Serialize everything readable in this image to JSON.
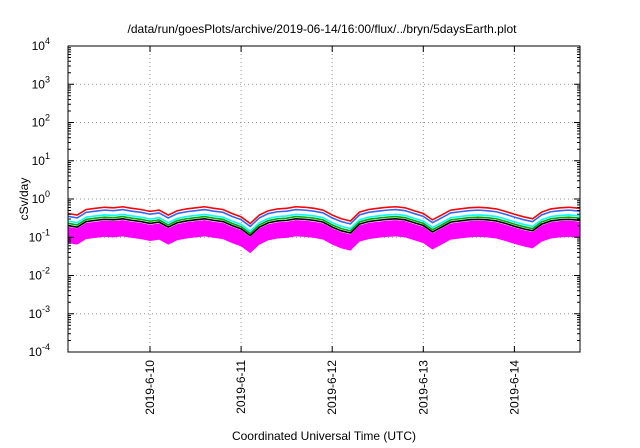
{
  "chart_data": {
    "type": "line",
    "title": "/data/run/goesPlots/archive/2019-06-14/16:00/flux/../bryn/5daysEarth.plot",
    "xlabel": "Coordinated Universal Time (UTC)",
    "ylabel": "cSv/day",
    "yscale": "log",
    "ylim": [
      0.0001,
      10000
    ],
    "y_ticks": [
      {
        "base": "10",
        "exp": "-4",
        "value": 0.0001
      },
      {
        "base": "10",
        "exp": "-3",
        "value": 0.001
      },
      {
        "base": "10",
        "exp": "-2",
        "value": 0.01
      },
      {
        "base": "10",
        "exp": "-1",
        "value": 0.1
      },
      {
        "base": "10",
        "exp": "0",
        "value": 1
      },
      {
        "base": "10",
        "exp": "1",
        "value": 10
      },
      {
        "base": "10",
        "exp": "2",
        "value": 100
      },
      {
        "base": "10",
        "exp": "3",
        "value": 1000
      },
      {
        "base": "10",
        "exp": "4",
        "value": 10000
      }
    ],
    "xlim": [
      9.1,
      14.72
    ],
    "x_ticks": [
      {
        "label": "2019-6-10",
        "value": 10
      },
      {
        "label": "2019-6-11",
        "value": 11
      },
      {
        "label": "2019-6-12",
        "value": 12
      },
      {
        "label": "2019-6-13",
        "value": 13
      },
      {
        "label": "2019-6-14",
        "value": 14
      }
    ],
    "grid": true,
    "legend": "none",
    "fill_band": {
      "color": "#ff00ff",
      "lower_factor": 0.32,
      "upper_factor": 0.85
    },
    "series": [
      {
        "color": "#ff00ff",
        "factor": 0.6
      },
      {
        "color": "#ff0000",
        "factor": 1.9
      },
      {
        "color": "#000000",
        "factor": 0.92
      },
      {
        "color": "#00aa00",
        "factor": 1.05
      },
      {
        "color": "#00ffff",
        "factor": 1.2
      },
      {
        "color": "#3366ff",
        "factor": 1.6
      }
    ],
    "baseline_x": [
      9.1,
      9.2,
      9.3,
      9.4,
      9.5,
      9.6,
      9.7,
      9.8,
      9.9,
      10.0,
      10.1,
      10.2,
      10.3,
      10.4,
      10.5,
      10.6,
      10.7,
      10.8,
      10.9,
      11.0,
      11.1,
      11.2,
      11.3,
      11.4,
      11.5,
      11.6,
      11.7,
      11.8,
      11.9,
      12.0,
      12.1,
      12.2,
      12.3,
      12.4,
      12.5,
      12.6,
      12.7,
      12.8,
      12.9,
      13.0,
      13.1,
      13.2,
      13.3,
      13.4,
      13.5,
      13.6,
      13.7,
      13.8,
      13.9,
      14.0,
      14.1,
      14.2,
      14.3,
      14.4,
      14.5,
      14.6,
      14.72
    ],
    "baseline_y": [
      0.22,
      0.2,
      0.28,
      0.3,
      0.32,
      0.31,
      0.33,
      0.3,
      0.28,
      0.25,
      0.27,
      0.2,
      0.26,
      0.29,
      0.31,
      0.33,
      0.3,
      0.28,
      0.22,
      0.18,
      0.12,
      0.2,
      0.26,
      0.29,
      0.3,
      0.33,
      0.32,
      0.3,
      0.27,
      0.2,
      0.16,
      0.14,
      0.24,
      0.28,
      0.3,
      0.32,
      0.33,
      0.31,
      0.26,
      0.22,
      0.15,
      0.2,
      0.27,
      0.29,
      0.31,
      0.32,
      0.31,
      0.29,
      0.25,
      0.21,
      0.18,
      0.16,
      0.24,
      0.29,
      0.31,
      0.32,
      0.3
    ]
  }
}
